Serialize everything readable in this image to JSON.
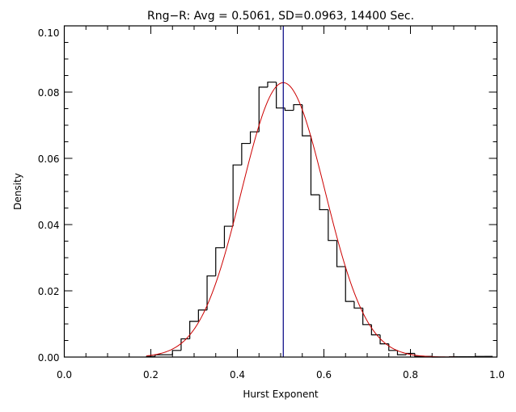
{
  "chart_data": {
    "type": "bar",
    "style": "step-histogram",
    "title": "Rng−R: Avg = 0.5061, SD=0.0963, 14400 Sec.",
    "xlabel": "Hurst Exponent",
    "ylabel": "Density",
    "xlim": [
      0.0,
      1.0
    ],
    "ylim": [
      0.0,
      0.1
    ],
    "xticks": [
      "0.0",
      "0.2",
      "0.4",
      "0.6",
      "0.8",
      "1.0"
    ],
    "xtick_values": [
      0.0,
      0.2,
      0.4,
      0.6,
      0.8,
      1.0
    ],
    "yticks": [
      "0.00",
      "0.02",
      "0.04",
      "0.06",
      "0.08",
      "0.10"
    ],
    "ytick_values": [
      0.0,
      0.02,
      0.04,
      0.06,
      0.08,
      0.1
    ],
    "grid": false,
    "bin_width": 0.02,
    "bin_centers": [
      0.2,
      0.22,
      0.24,
      0.26,
      0.28,
      0.3,
      0.32,
      0.34,
      0.36,
      0.38,
      0.4,
      0.42,
      0.44,
      0.46,
      0.48,
      0.5,
      0.52,
      0.54,
      0.56,
      0.58,
      0.6,
      0.62,
      0.64,
      0.66,
      0.68,
      0.7,
      0.72,
      0.74,
      0.76,
      0.78,
      0.8,
      0.82,
      0.84,
      0.86,
      0.88,
      0.9,
      0.92,
      0.94,
      0.96,
      0.98
    ],
    "values": [
      0.0002,
      0.0007,
      0.0007,
      0.002,
      0.0055,
      0.0108,
      0.0142,
      0.0245,
      0.033,
      0.0395,
      0.058,
      0.0645,
      0.068,
      0.0815,
      0.083,
      0.0752,
      0.0745,
      0.0762,
      0.0668,
      0.049,
      0.0445,
      0.0352,
      0.0273,
      0.0168,
      0.0148,
      0.0098,
      0.0067,
      0.004,
      0.002,
      0.0007,
      0.0011,
      0.0002,
      0.0002,
      0.0,
      0.0,
      0.0001,
      0.0001,
      0.0001,
      0.0002,
      0.0002
    ],
    "fit": {
      "type": "gaussian",
      "mean": 0.5061,
      "sd": 0.0963,
      "x_start": 0.19,
      "x_end": 1.0,
      "color": "#cc0000"
    },
    "mean_line": {
      "x": 0.5061,
      "color": "#000080"
    },
    "histogram_color": "#000000"
  }
}
